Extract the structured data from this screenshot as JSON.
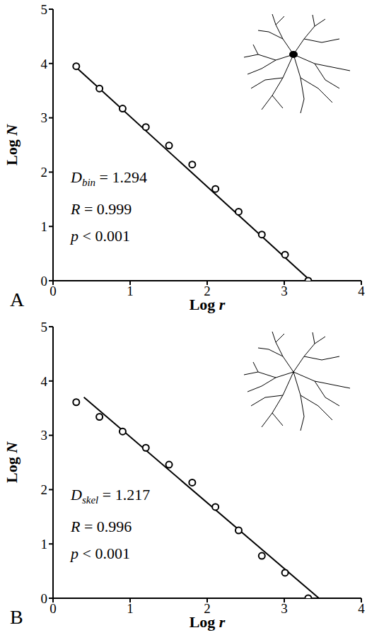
{
  "chart_data": [
    {
      "type": "scatter",
      "panel": "A",
      "x_label": "Log r",
      "y_label": "Log N",
      "xlim": [
        0,
        4
      ],
      "ylim": [
        0,
        5
      ],
      "xticks": [
        0,
        1,
        2,
        3,
        4
      ],
      "yticks": [
        0,
        1,
        2,
        3,
        4,
        5
      ],
      "series": [
        {
          "type": "scatter",
          "marker": "circle",
          "color": "#000000",
          "x": [
            0.301,
            0.602,
            0.903,
            1.204,
            1.505,
            1.806,
            2.107,
            2.408,
            2.709,
            3.01,
            3.311
          ],
          "values": [
            3.95,
            3.54,
            3.17,
            2.83,
            2.49,
            2.14,
            1.69,
            1.27,
            0.85,
            0.48,
            0.0
          ]
        },
        {
          "type": "line",
          "line_style": "solid",
          "color": "#000000",
          "x": [
            0.3,
            3.34
          ],
          "values": [
            3.93,
            0.0
          ]
        }
      ],
      "annotations": [
        {
          "italic": "D",
          "sub": "bin",
          "after": " = 1.294"
        },
        {
          "italic": "R",
          "after": " = 0.999"
        },
        {
          "italic": "p",
          "after": " < 0.001"
        }
      ]
    },
    {
      "type": "scatter",
      "panel": "B",
      "x_label": "Log r",
      "y_label": "Log N",
      "xlim": [
        0,
        4
      ],
      "ylim": [
        0,
        5
      ],
      "xticks": [
        0,
        1,
        2,
        3,
        4
      ],
      "yticks": [
        0,
        1,
        2,
        3,
        4,
        5
      ],
      "series": [
        {
          "type": "scatter",
          "marker": "circle",
          "color": "#000000",
          "x": [
            0.301,
            0.602,
            0.903,
            1.204,
            1.505,
            1.806,
            2.107,
            2.408,
            2.709,
            3.01,
            3.311
          ],
          "values": [
            3.61,
            3.34,
            3.07,
            2.77,
            2.46,
            2.13,
            1.68,
            1.25,
            0.78,
            0.47,
            0.0
          ]
        },
        {
          "type": "line",
          "line_style": "solid",
          "color": "#000000",
          "x": [
            0.4,
            3.45
          ],
          "values": [
            3.7,
            0.0
          ]
        }
      ],
      "annotations": [
        {
          "italic": "D",
          "sub": "skel",
          "after": " = 1.217"
        },
        {
          "italic": "R",
          "after": " = 0.996"
        },
        {
          "italic": "p",
          "after": " < 0.001"
        }
      ]
    }
  ]
}
